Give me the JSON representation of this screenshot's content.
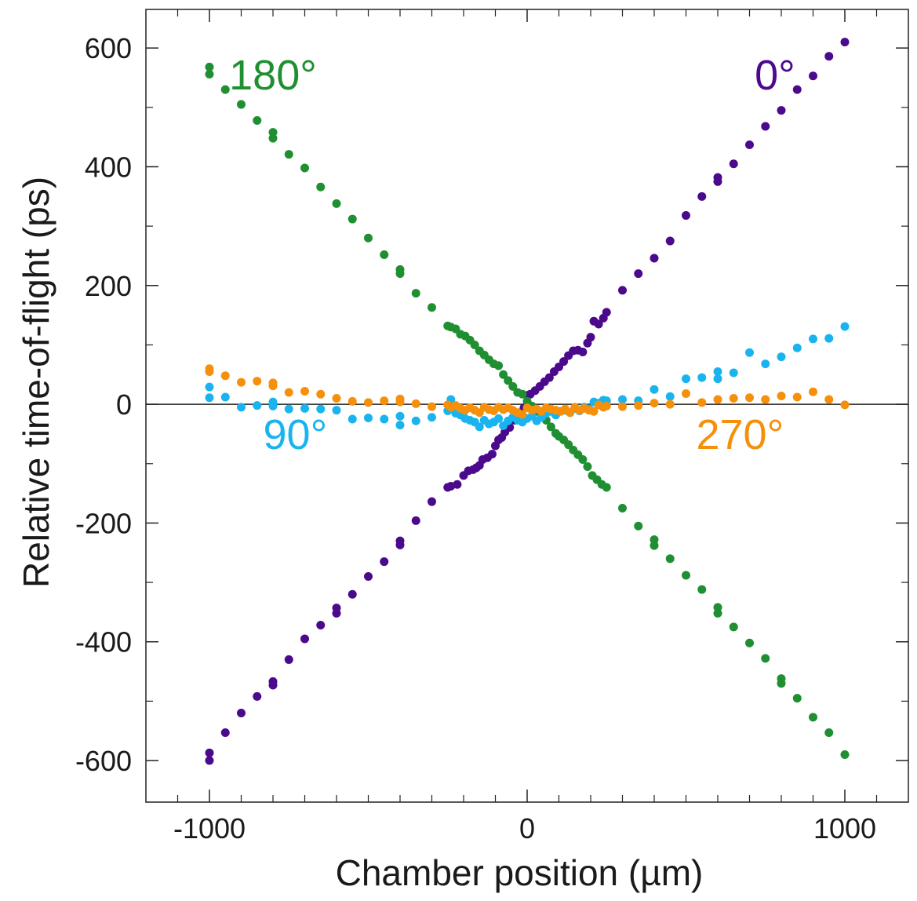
{
  "chart_data": {
    "type": "scatter",
    "title": "",
    "xlabel": "Chamber position (µm)",
    "ylabel": "Relative time-of-flight (ps)",
    "xlim": [
      -1200,
      1200
    ],
    "ylim": [
      -670,
      665
    ],
    "xticks": [
      -1000,
      0,
      1000
    ],
    "xtick_labels": [
      "-1000",
      "0",
      "1000"
    ],
    "yticks": [
      -600,
      -400,
      -200,
      0,
      200,
      400,
      600
    ],
    "ytick_labels": [
      "-600",
      "-400",
      "-200",
      "0",
      "200",
      "400",
      "600"
    ],
    "grid": false,
    "legend": "none",
    "zero_line": true,
    "series": [
      {
        "name": "0°",
        "color": "#4b0a8c",
        "points": [
          [
            -1000,
            -600
          ],
          [
            -1000,
            -587
          ],
          [
            -950,
            -553
          ],
          [
            -900,
            -520
          ],
          [
            -850,
            -492
          ],
          [
            -800,
            -473
          ],
          [
            -800,
            -467
          ],
          [
            -750,
            -430
          ],
          [
            -700,
            -395
          ],
          [
            -650,
            -372
          ],
          [
            -600,
            -352
          ],
          [
            -600,
            -343
          ],
          [
            -550,
            -320
          ],
          [
            -500,
            -290
          ],
          [
            -450,
            -265
          ],
          [
            -400,
            -237
          ],
          [
            -400,
            -230
          ],
          [
            -350,
            -196
          ],
          [
            -300,
            -164
          ],
          [
            -250,
            -140
          ],
          [
            -240,
            -138
          ],
          [
            -220,
            -135
          ],
          [
            -200,
            -120
          ],
          [
            -185,
            -112
          ],
          [
            -170,
            -110
          ],
          [
            -160,
            -107
          ],
          [
            -150,
            -103
          ],
          [
            -140,
            -93
          ],
          [
            -125,
            -90
          ],
          [
            -110,
            -84
          ],
          [
            -100,
            -70
          ],
          [
            -90,
            -60
          ],
          [
            -80,
            -56
          ],
          [
            -70,
            -47
          ],
          [
            -55,
            -39
          ],
          [
            -40,
            -27
          ],
          [
            -30,
            -20
          ],
          [
            -20,
            -14
          ],
          [
            -10,
            -6
          ],
          [
            0,
            15
          ],
          [
            10,
            17
          ],
          [
            25,
            23
          ],
          [
            40,
            30
          ],
          [
            55,
            38
          ],
          [
            70,
            45
          ],
          [
            85,
            55
          ],
          [
            100,
            63
          ],
          [
            115,
            72
          ],
          [
            130,
            82
          ],
          [
            145,
            90
          ],
          [
            160,
            91
          ],
          [
            175,
            88
          ],
          [
            190,
            103
          ],
          [
            200,
            113
          ],
          [
            210,
            140
          ],
          [
            225,
            135
          ],
          [
            240,
            145
          ],
          [
            250,
            155
          ],
          [
            300,
            192
          ],
          [
            350,
            220
          ],
          [
            400,
            246
          ],
          [
            450,
            275
          ],
          [
            500,
            318
          ],
          [
            550,
            350
          ],
          [
            600,
            375
          ],
          [
            600,
            382
          ],
          [
            650,
            405
          ],
          [
            700,
            437
          ],
          [
            750,
            468
          ],
          [
            800,
            495
          ],
          [
            850,
            530
          ],
          [
            900,
            553
          ],
          [
            950,
            586
          ],
          [
            1000,
            610
          ]
        ]
      },
      {
        "name": "180°",
        "color": "#1f8f32",
        "points": [
          [
            -1000,
            568
          ],
          [
            -1000,
            556
          ],
          [
            -950,
            530
          ],
          [
            -900,
            505
          ],
          [
            -850,
            478
          ],
          [
            -800,
            458
          ],
          [
            -800,
            448
          ],
          [
            -750,
            421
          ],
          [
            -700,
            398
          ],
          [
            -650,
            366
          ],
          [
            -600,
            338
          ],
          [
            -550,
            312
          ],
          [
            -500,
            280
          ],
          [
            -450,
            252
          ],
          [
            -400,
            227
          ],
          [
            -400,
            220
          ],
          [
            -350,
            187
          ],
          [
            -300,
            163
          ],
          [
            -250,
            132
          ],
          [
            -240,
            130
          ],
          [
            -225,
            127
          ],
          [
            -210,
            118
          ],
          [
            -195,
            115
          ],
          [
            -180,
            108
          ],
          [
            -165,
            100
          ],
          [
            -150,
            90
          ],
          [
            -135,
            83
          ],
          [
            -120,
            75
          ],
          [
            -105,
            68
          ],
          [
            -90,
            65
          ],
          [
            -75,
            50
          ],
          [
            -60,
            40
          ],
          [
            -45,
            30
          ],
          [
            -30,
            20
          ],
          [
            -15,
            17
          ],
          [
            0,
            5
          ],
          [
            15,
            -3
          ],
          [
            30,
            -12
          ],
          [
            45,
            -20
          ],
          [
            60,
            -27
          ],
          [
            75,
            -38
          ],
          [
            90,
            -49
          ],
          [
            100,
            -54
          ],
          [
            115,
            -60
          ],
          [
            130,
            -68
          ],
          [
            145,
            -77
          ],
          [
            160,
            -85
          ],
          [
            175,
            -93
          ],
          [
            190,
            -105
          ],
          [
            205,
            -120
          ],
          [
            220,
            -127
          ],
          [
            235,
            -135
          ],
          [
            250,
            -140
          ],
          [
            300,
            -175
          ],
          [
            350,
            -205
          ],
          [
            400,
            -228
          ],
          [
            400,
            -238
          ],
          [
            450,
            -260
          ],
          [
            500,
            -288
          ],
          [
            550,
            -312
          ],
          [
            600,
            -342
          ],
          [
            600,
            -352
          ],
          [
            650,
            -375
          ],
          [
            700,
            -402
          ],
          [
            750,
            -428
          ],
          [
            800,
            -462
          ],
          [
            800,
            -470
          ],
          [
            850,
            -495
          ],
          [
            900,
            -527
          ],
          [
            950,
            -553
          ],
          [
            1000,
            -590
          ]
        ]
      },
      {
        "name": "90°",
        "color": "#19b4f0",
        "points": [
          [
            -1000,
            29
          ],
          [
            -1000,
            11
          ],
          [
            -950,
            12
          ],
          [
            -900,
            -5
          ],
          [
            -850,
            -2
          ],
          [
            -800,
            4
          ],
          [
            -800,
            -3
          ],
          [
            -750,
            -8
          ],
          [
            -700,
            -7
          ],
          [
            -650,
            -8
          ],
          [
            -600,
            -10
          ],
          [
            -550,
            -25
          ],
          [
            -500,
            -23
          ],
          [
            -450,
            -25
          ],
          [
            -400,
            -20
          ],
          [
            -400,
            -35
          ],
          [
            -350,
            -28
          ],
          [
            -300,
            -22
          ],
          [
            -250,
            -11
          ],
          [
            -240,
            8
          ],
          [
            -225,
            -15
          ],
          [
            -210,
            -18
          ],
          [
            -195,
            -24
          ],
          [
            -180,
            -27
          ],
          [
            -165,
            -30
          ],
          [
            -150,
            -38
          ],
          [
            -135,
            -27
          ],
          [
            -120,
            -33
          ],
          [
            -105,
            -30
          ],
          [
            -90,
            -24
          ],
          [
            -75,
            -36
          ],
          [
            -60,
            -28
          ],
          [
            -45,
            -22
          ],
          [
            -30,
            -27
          ],
          [
            -15,
            -30
          ],
          [
            0,
            -24
          ],
          [
            15,
            -20
          ],
          [
            30,
            -28
          ],
          [
            45,
            -22
          ],
          [
            60,
            -15
          ],
          [
            75,
            -12
          ],
          [
            90,
            -18
          ],
          [
            105,
            -12
          ],
          [
            120,
            -10
          ],
          [
            135,
            -14
          ],
          [
            150,
            -7
          ],
          [
            165,
            -11
          ],
          [
            180,
            -5
          ],
          [
            195,
            -8
          ],
          [
            210,
            4
          ],
          [
            225,
            2
          ],
          [
            240,
            7
          ],
          [
            250,
            6
          ],
          [
            300,
            8
          ],
          [
            350,
            6
          ],
          [
            400,
            25
          ],
          [
            450,
            13
          ],
          [
            500,
            43
          ],
          [
            550,
            45
          ],
          [
            600,
            55
          ],
          [
            600,
            43
          ],
          [
            650,
            53
          ],
          [
            700,
            87
          ],
          [
            750,
            68
          ],
          [
            800,
            80
          ],
          [
            850,
            95
          ],
          [
            900,
            110
          ],
          [
            950,
            111
          ],
          [
            1000,
            131
          ]
        ]
      },
      {
        "name": "270°",
        "color": "#f6900b",
        "points": [
          [
            -1000,
            60
          ],
          [
            -1000,
            55
          ],
          [
            -950,
            48
          ],
          [
            -900,
            37
          ],
          [
            -850,
            39
          ],
          [
            -800,
            36
          ],
          [
            -800,
            31
          ],
          [
            -750,
            20
          ],
          [
            -700,
            22
          ],
          [
            -650,
            17
          ],
          [
            -600,
            10
          ],
          [
            -550,
            5
          ],
          [
            -500,
            3
          ],
          [
            -450,
            6
          ],
          [
            -400,
            9
          ],
          [
            -400,
            4
          ],
          [
            -350,
            1
          ],
          [
            -300,
            -4
          ],
          [
            -250,
            -1
          ],
          [
            -240,
            -5
          ],
          [
            -225,
            -2
          ],
          [
            -210,
            -7
          ],
          [
            -195,
            -10
          ],
          [
            -180,
            -6
          ],
          [
            -165,
            -10
          ],
          [
            -150,
            -14
          ],
          [
            -135,
            -5
          ],
          [
            -120,
            -9
          ],
          [
            -105,
            -11
          ],
          [
            -90,
            -5
          ],
          [
            -75,
            -9
          ],
          [
            -60,
            -6
          ],
          [
            -45,
            -10
          ],
          [
            -30,
            -14
          ],
          [
            -15,
            -17
          ],
          [
            0,
            -6
          ],
          [
            15,
            -10
          ],
          [
            30,
            -8
          ],
          [
            45,
            -12
          ],
          [
            60,
            -6
          ],
          [
            75,
            -8
          ],
          [
            90,
            -10
          ],
          [
            105,
            -12
          ],
          [
            120,
            -8
          ],
          [
            135,
            -14
          ],
          [
            150,
            -5
          ],
          [
            165,
            -10
          ],
          [
            180,
            -7
          ],
          [
            195,
            -10
          ],
          [
            210,
            -12
          ],
          [
            225,
            -1
          ],
          [
            240,
            -5
          ],
          [
            250,
            -3
          ],
          [
            300,
            -4
          ],
          [
            350,
            -2
          ],
          [
            400,
            2
          ],
          [
            450,
            0
          ],
          [
            500,
            18
          ],
          [
            550,
            3
          ],
          [
            600,
            8
          ],
          [
            650,
            10
          ],
          [
            700,
            11
          ],
          [
            750,
            8
          ],
          [
            800,
            14
          ],
          [
            850,
            12
          ],
          [
            900,
            21
          ],
          [
            950,
            8
          ],
          [
            1000,
            -1
          ]
        ]
      }
    ],
    "annotations": [
      {
        "text": "180°",
        "series": "180°",
        "x": -800,
        "y": 530
      },
      {
        "text": "0°",
        "series": "0°",
        "x": 780,
        "y": 530
      },
      {
        "text": "90°",
        "series": "90°",
        "x": -730,
        "y": -75
      },
      {
        "text": "270°",
        "series": "270°",
        "x": 670,
        "y": -75
      }
    ]
  }
}
